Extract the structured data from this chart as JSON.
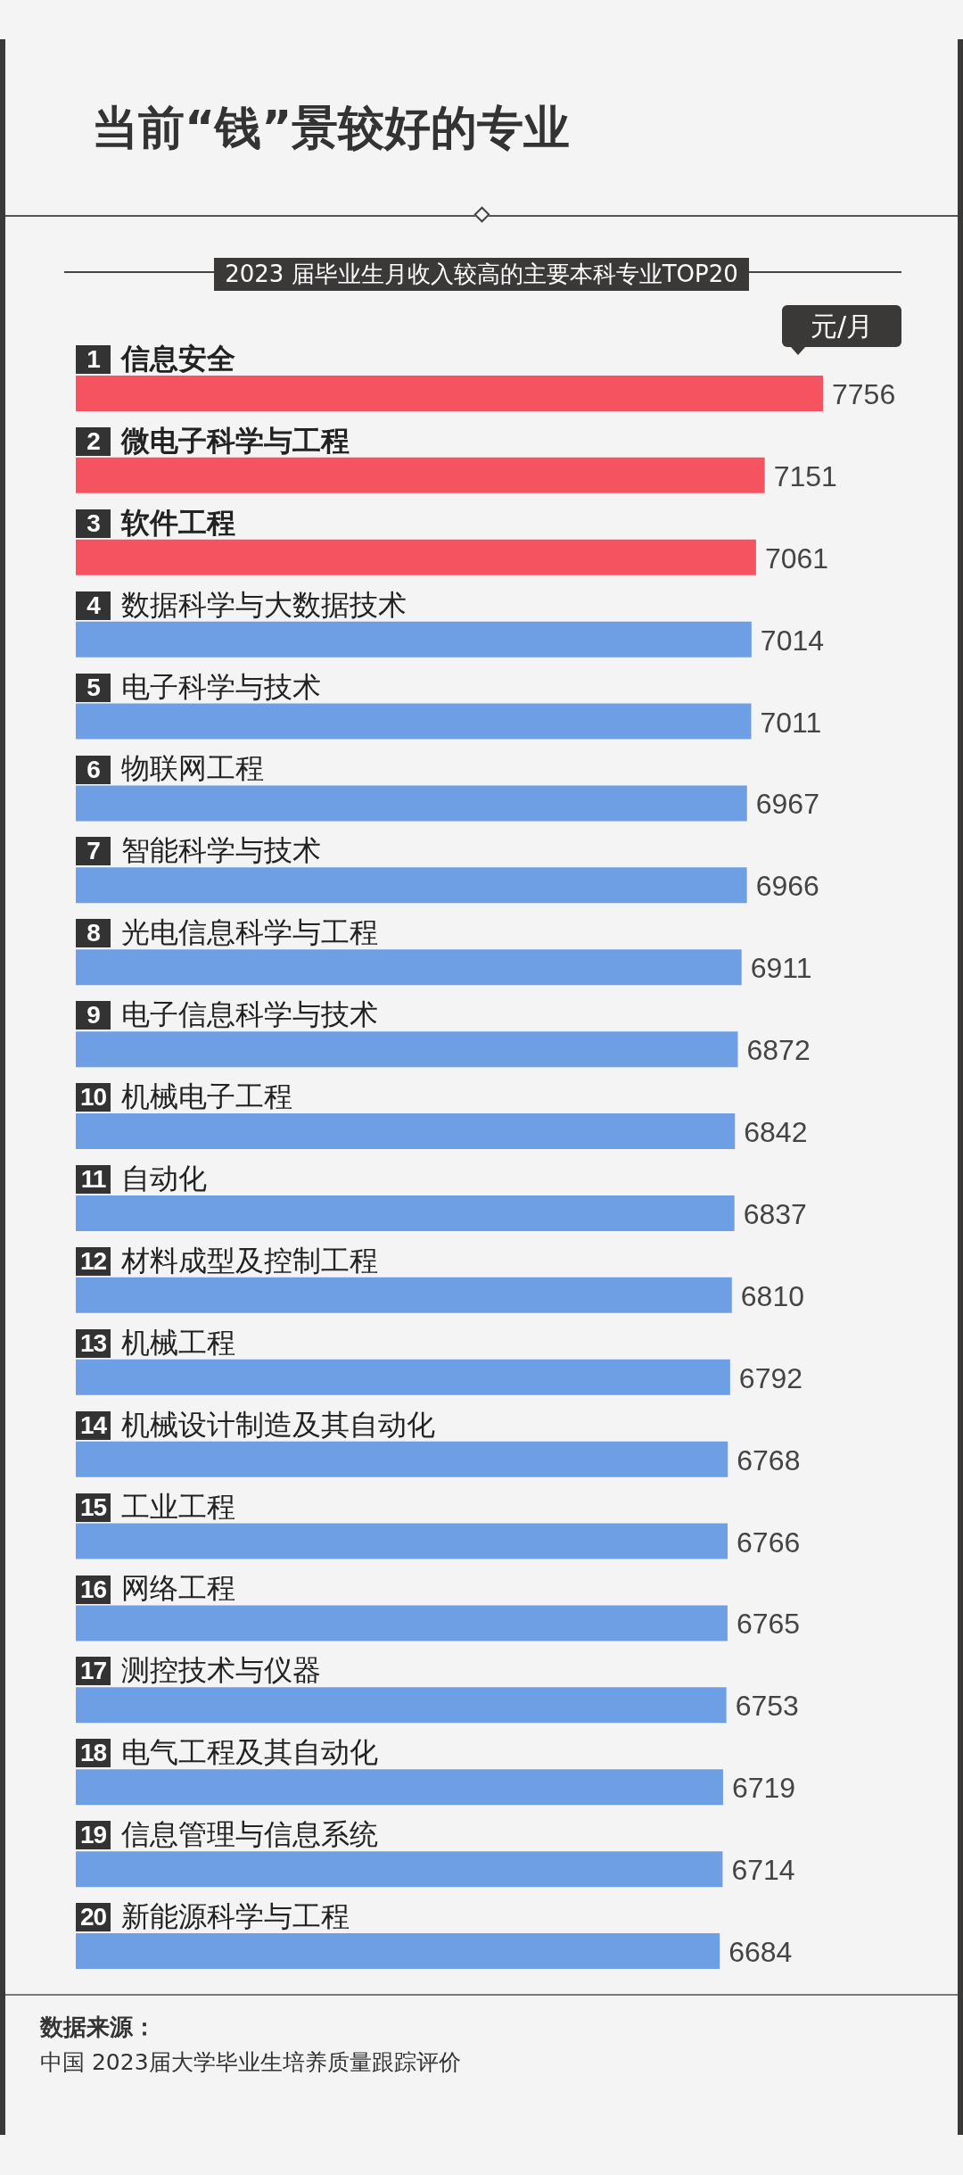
{
  "chart_data": {
    "type": "bar",
    "orientation": "horizontal",
    "title": "当前“钱”景较好的专业",
    "subtitle": "2023 届毕业生月收入较高的主要本科专业TOP20",
    "xlabel": "元/月",
    "categories": [
      "1 信息安全",
      "2 微电子科学与工程",
      "3 软件工程",
      "4 数据科学与大数据技术",
      "5 电子科学与技术",
      "6 物联网工程",
      "7 智能科学与技术",
      "8 光电信息科学与工程",
      "9 电子信息科学与技术",
      "10 机械电子工程",
      "11 自动化",
      "12 材料成型及控制工程",
      "13 机械工程",
      "14 机械设计制造及其自动化",
      "15 工业工程",
      "16 网络工程",
      "17 测控技术与仪器",
      "18 电气工程及其自动化",
      "19 信息管理与信息系统",
      "20 新能源科学与工程"
    ],
    "values": [
      7756,
      7151,
      7061,
      7014,
      7011,
      6967,
      6966,
      6911,
      6872,
      6842,
      6837,
      6810,
      6792,
      6768,
      6766,
      6765,
      6753,
      6719,
      6714,
      6684
    ],
    "colors": [
      "#f5535f",
      "#f5535f",
      "#f5535f",
      "#6e9fe5",
      "#6e9fe5",
      "#6e9fe5",
      "#6e9fe5",
      "#6e9fe5",
      "#6e9fe5",
      "#6e9fe5",
      "#6e9fe5",
      "#6e9fe5",
      "#6e9fe5",
      "#6e9fe5",
      "#6e9fe5",
      "#6e9fe5",
      "#6e9fe5",
      "#6e9fe5",
      "#6e9fe5",
      "#6e9fe5"
    ],
    "data_labels": true,
    "tick_labels": "y",
    "annotations": [
      "数据来源：",
      "中国 2023届大学毕业生培养质量跟踪评价"
    ]
  }
}
